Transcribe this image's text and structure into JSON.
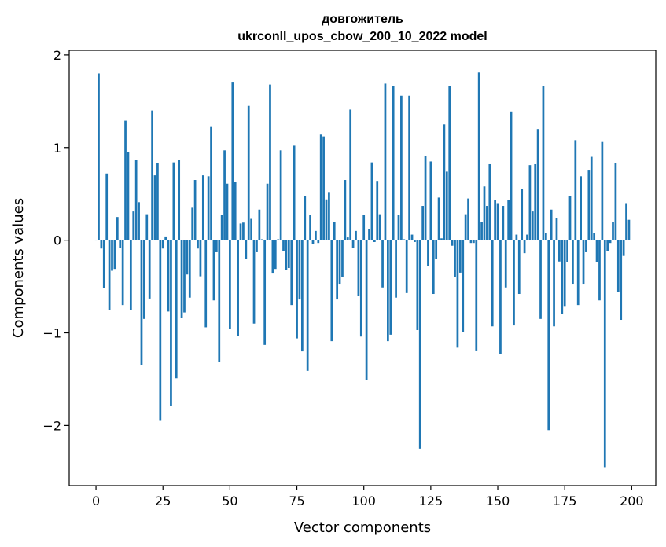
{
  "chart_data": {
    "type": "bar",
    "title_line1": "довгожитель",
    "title_line2": "ukrconll_upos_cbow_200_10_2022 model",
    "xlabel": "Vector components",
    "ylabel": "Components values",
    "xlim": [
      -10,
      209
    ],
    "ylim": [
      -2.65,
      2.05
    ],
    "x_ticks": [
      0,
      25,
      50,
      75,
      100,
      125,
      150,
      175,
      200
    ],
    "x_tick_labels": [
      "0",
      "25",
      "50",
      "75",
      "100",
      "125",
      "150",
      "175",
      "200"
    ],
    "y_ticks": [
      -2,
      -1,
      0,
      1,
      2
    ],
    "y_tick_labels": [
      "−2",
      "−1",
      "0",
      "1",
      "2"
    ],
    "bar_color": "#1f77b4",
    "x": [
      0,
      1,
      2,
      3,
      4,
      5,
      6,
      7,
      8,
      9,
      10,
      11,
      12,
      13,
      14,
      15,
      16,
      17,
      18,
      19,
      20,
      21,
      22,
      23,
      24,
      25,
      26,
      27,
      28,
      29,
      30,
      31,
      32,
      33,
      34,
      35,
      36,
      37,
      38,
      39,
      40,
      41,
      42,
      43,
      44,
      45,
      46,
      47,
      48,
      49,
      50,
      51,
      52,
      53,
      54,
      55,
      56,
      57,
      58,
      59,
      60,
      61,
      62,
      63,
      64,
      65,
      66,
      67,
      68,
      69,
      70,
      71,
      72,
      73,
      74,
      75,
      76,
      77,
      78,
      79,
      80,
      81,
      82,
      83,
      84,
      85,
      86,
      87,
      88,
      89,
      90,
      91,
      92,
      93,
      94,
      95,
      96,
      97,
      98,
      99,
      100,
      101,
      102,
      103,
      104,
      105,
      106,
      107,
      108,
      109,
      110,
      111,
      112,
      113,
      114,
      115,
      116,
      117,
      118,
      119,
      120,
      121,
      122,
      123,
      124,
      125,
      126,
      127,
      128,
      129,
      130,
      131,
      132,
      133,
      134,
      135,
      136,
      137,
      138,
      139,
      140,
      141,
      142,
      143,
      144,
      145,
      146,
      147,
      148,
      149,
      150,
      151,
      152,
      153,
      154,
      155,
      156,
      157,
      158,
      159,
      160,
      161,
      162,
      163,
      164,
      165,
      166,
      167,
      168,
      169,
      170,
      171,
      172,
      173,
      174,
      175,
      176,
      177,
      178,
      179,
      180,
      181,
      182,
      183,
      184,
      185,
      186,
      187,
      188,
      189,
      190,
      191,
      192,
      193,
      194,
      195,
      196,
      197,
      198,
      199
    ],
    "values": [
      0.0,
      1.8,
      -0.09,
      -0.52,
      0.72,
      -0.75,
      -0.33,
      -0.31,
      0.25,
      -0.08,
      -0.7,
      1.29,
      0.95,
      -0.75,
      0.31,
      0.87,
      0.41,
      -1.35,
      -0.85,
      0.28,
      -0.63,
      1.4,
      0.7,
      0.83,
      -1.95,
      -0.09,
      0.04,
      -0.77,
      -1.79,
      0.84,
      -1.49,
      0.87,
      -0.84,
      -0.78,
      -0.37,
      -0.62,
      0.35,
      0.65,
      -0.09,
      -0.39,
      0.7,
      -0.94,
      0.69,
      1.23,
      -0.65,
      -0.13,
      -1.31,
      0.27,
      0.97,
      0.61,
      -0.96,
      1.71,
      0.63,
      -1.03,
      0.18,
      0.19,
      -0.2,
      1.45,
      0.23,
      -0.9,
      -0.13,
      0.33,
      0.01,
      -1.13,
      0.61,
      1.68,
      -0.36,
      -0.31,
      0.01,
      0.97,
      -0.12,
      -0.32,
      -0.3,
      -0.7,
      1.02,
      -1.06,
      -0.64,
      -1.2,
      0.48,
      -1.41,
      0.27,
      -0.04,
      0.1,
      -0.03,
      1.14,
      1.12,
      0.44,
      0.52,
      -1.09,
      0.2,
      -0.64,
      -0.47,
      -0.4,
      0.65,
      0.03,
      1.41,
      -0.08,
      0.1,
      -0.6,
      -1.04,
      0.27,
      -1.51,
      0.12,
      0.84,
      -0.02,
      0.64,
      0.28,
      -0.51,
      1.69,
      -1.09,
      -1.02,
      1.66,
      -0.62,
      0.27,
      1.56,
      0.01,
      -0.57,
      1.56,
      0.06,
      -0.02,
      -0.97,
      -2.25,
      0.37,
      0.91,
      -0.28,
      0.85,
      -0.58,
      -0.2,
      0.46,
      0.02,
      1.25,
      0.74,
      1.66,
      -0.06,
      -0.4,
      -1.16,
      -0.35,
      -0.99,
      0.28,
      0.45,
      -0.03,
      -0.03,
      -1.19,
      1.81,
      0.2,
      0.58,
      0.37,
      0.82,
      -0.93,
      0.43,
      0.4,
      -1.23,
      0.37,
      -0.51,
      0.43,
      1.39,
      -0.92,
      0.06,
      -0.58,
      0.55,
      -0.14,
      0.06,
      0.81,
      0.31,
      0.82,
      1.2,
      -0.85,
      1.66,
      0.08,
      -2.05,
      0.33,
      -0.93,
      0.24,
      -0.23,
      -0.8,
      -0.71,
      -0.24,
      0.48,
      -0.47,
      1.08,
      -0.7,
      0.69,
      -0.47,
      -0.13,
      0.76,
      0.9,
      0.08,
      -0.24,
      -0.65,
      1.06,
      -2.45,
      -0.12,
      -0.03,
      0.2,
      0.83,
      -0.56,
      -0.86,
      -0.17,
      0.4,
      0.22
    ]
  }
}
